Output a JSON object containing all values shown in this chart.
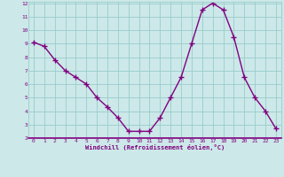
{
  "x": [
    0,
    1,
    2,
    3,
    4,
    5,
    6,
    7,
    8,
    9,
    10,
    11,
    12,
    13,
    14,
    15,
    16,
    17,
    18,
    19,
    20,
    21,
    22,
    23
  ],
  "y": [
    9.1,
    8.8,
    7.8,
    7.0,
    6.5,
    6.0,
    5.0,
    4.3,
    3.5,
    2.5,
    2.5,
    2.5,
    3.5,
    5.0,
    6.5,
    9.0,
    11.5,
    12.0,
    11.5,
    9.5,
    6.5,
    5.0,
    4.0,
    2.7
  ],
  "line_color": "#800080",
  "marker": "+",
  "marker_color": "#800080",
  "bg_color": "#cce8e8",
  "grid_color": "#99cccc",
  "xlabel": "Windchill (Refroidissement éolien,°C)",
  "xlabel_color": "#800080",
  "tick_color": "#800080",
  "ylim": [
    2,
    12
  ],
  "xlim": [
    -0.5,
    23.5
  ],
  "yticks": [
    2,
    3,
    4,
    5,
    6,
    7,
    8,
    9,
    10,
    11,
    12
  ],
  "xticks": [
    0,
    1,
    2,
    3,
    4,
    5,
    6,
    7,
    8,
    9,
    10,
    11,
    12,
    13,
    14,
    15,
    16,
    17,
    18,
    19,
    20,
    21,
    22,
    23
  ],
  "line_width": 1.0,
  "marker_size": 4
}
